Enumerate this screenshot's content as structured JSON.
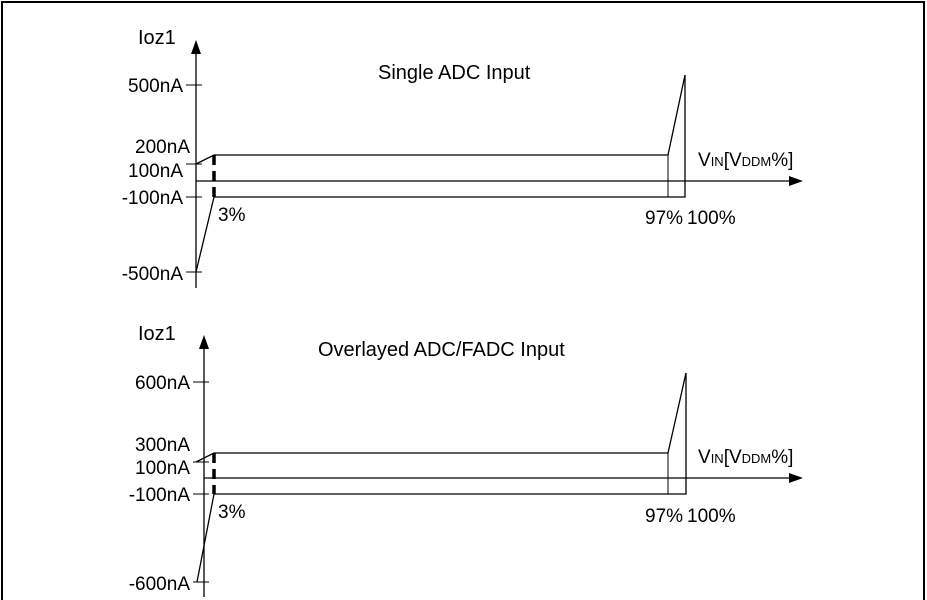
{
  "chart_data": [
    {
      "type": "line",
      "title": "Single ADC Input",
      "ylabel": "Ioz1",
      "xlabel_parts": [
        "V",
        "IN",
        "[V",
        "DDM",
        "%]"
      ],
      "y_ticks": [
        "500nA",
        "200nA",
        "100nA",
        "-100nA",
        "-500nA"
      ],
      "x_ticks": [
        "3%",
        "97%",
        "100%"
      ],
      "x_break_points": [
        0,
        3,
        97,
        100
      ],
      "upper_bound": {
        "x": [
          0,
          3,
          97,
          100
        ],
        "y": [
          "100nA",
          "200nA",
          "200nA",
          "500nA"
        ]
      },
      "lower_bound": {
        "x": [
          0,
          3,
          97,
          100
        ],
        "y": [
          "-500nA",
          "-100nA",
          "-100nA",
          "-100nA"
        ]
      }
    },
    {
      "type": "line",
      "title": "Overlayed ADC/FADC Input",
      "ylabel": "Ioz1",
      "xlabel_parts": [
        "V",
        "IN",
        "[V",
        "DDM",
        "%]"
      ],
      "y_ticks": [
        "600nA",
        "300nA",
        "100nA",
        "-100nA",
        "-600nA"
      ],
      "x_ticks": [
        "3%",
        "97%",
        "100%"
      ],
      "x_break_points": [
        0,
        3,
        97,
        100
      ],
      "upper_bound": {
        "x": [
          0,
          3,
          97,
          100
        ],
        "y": [
          "100nA",
          "300nA",
          "300nA",
          "600nA"
        ]
      },
      "lower_bound": {
        "x": [
          0,
          3,
          97,
          100
        ],
        "y": [
          "-600nA",
          "-100nA",
          "-100nA",
          "-100nA"
        ]
      }
    }
  ]
}
